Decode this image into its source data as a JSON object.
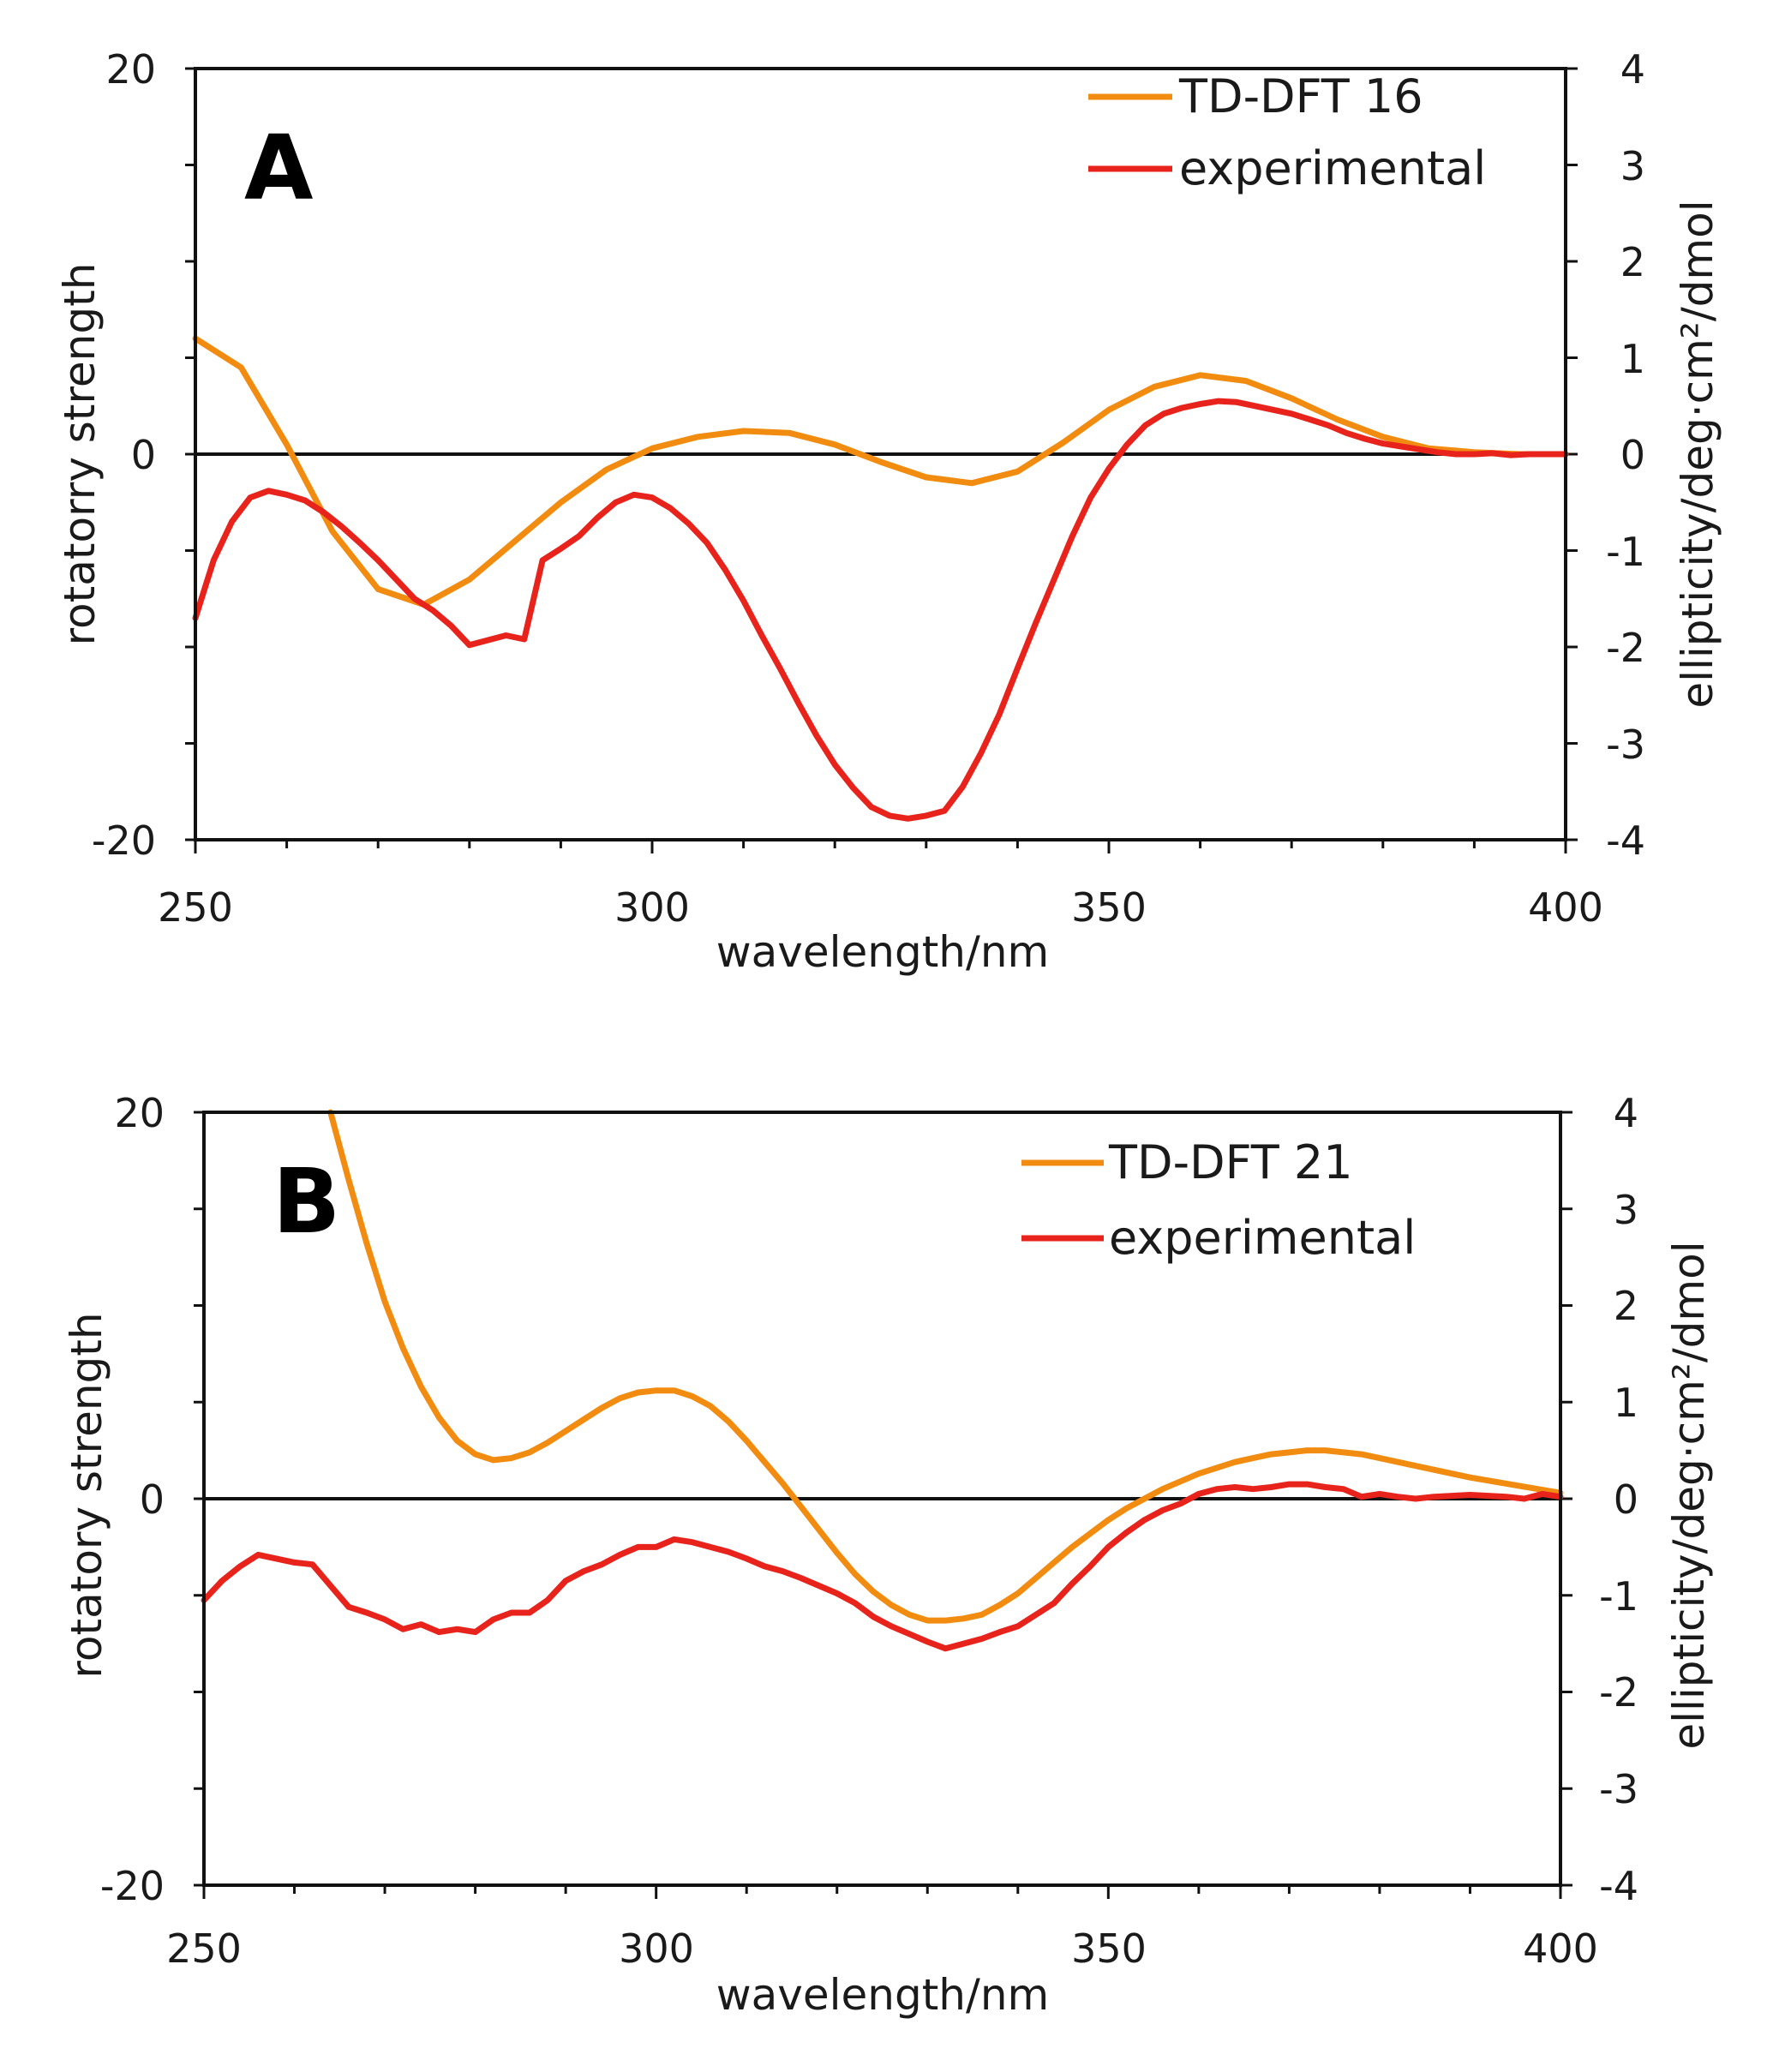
{
  "colors": {
    "theory": "#F28C10",
    "experimental": "#E8231C",
    "axis": "#111111"
  },
  "chart_data": [
    {
      "type": "line",
      "panel_label": "A",
      "xlabel": "wavelength/nm",
      "ylabel": "rotatorry strength",
      "y2label": "ellipticity/deg·cm²/dmol",
      "xlim": [
        250,
        400
      ],
      "ylim": [
        -20,
        20
      ],
      "y2lim": [
        -4,
        4
      ],
      "x_ticks": [
        "250",
        "300",
        "350",
        "400"
      ],
      "y_ticks": [
        "20",
        "0",
        "-20"
      ],
      "y2_ticks": [
        "4",
        "3",
        "2",
        "1",
        "0",
        "-1",
        "-2",
        "-3",
        "-4"
      ],
      "series": [
        {
          "name": "TD-DFT 16",
          "axis": "left",
          "color_key": "theory",
          "x": [
            250,
            255,
            260,
            265,
            270,
            275,
            280,
            285,
            290,
            295,
            300,
            305,
            310,
            315,
            320,
            325,
            330,
            335,
            340,
            345,
            350,
            355,
            360,
            365,
            370,
            375,
            380,
            385,
            390,
            395,
            400
          ],
          "y": [
            6,
            4.5,
            0.5,
            -4,
            -7,
            -7.8,
            -6.5,
            -4.5,
            -2.5,
            -0.8,
            0.3,
            0.9,
            1.2,
            1.1,
            0.5,
            -0.4,
            -1.2,
            -1.5,
            -0.9,
            0.6,
            2.3,
            3.5,
            4.1,
            3.8,
            2.9,
            1.8,
            0.9,
            0.3,
            0.1,
            0,
            0
          ]
        },
        {
          "name": "experimental",
          "axis": "right",
          "color_key": "experimental",
          "x": [
            250,
            252,
            254,
            256,
            258,
            260,
            262,
            264,
            266,
            268,
            270,
            272,
            274,
            276,
            278,
            280,
            282,
            284,
            286,
            288,
            290,
            292,
            294,
            296,
            298,
            300,
            302,
            304,
            306,
            308,
            310,
            312,
            314,
            316,
            318,
            320,
            322,
            324,
            326,
            328,
            330,
            332,
            334,
            336,
            338,
            340,
            342,
            344,
            346,
            348,
            350,
            352,
            354,
            356,
            358,
            360,
            362,
            364,
            366,
            368,
            370,
            372,
            374,
            376,
            378,
            380,
            382,
            384,
            386,
            388,
            390,
            392,
            394,
            396,
            398,
            400
          ],
          "y": [
            -1.7,
            -1.1,
            -0.7,
            -0.45,
            -0.38,
            -0.42,
            -0.48,
            -0.6,
            -0.75,
            -0.92,
            -1.1,
            -1.3,
            -1.5,
            -1.62,
            -1.78,
            -1.98,
            -1.93,
            -1.88,
            -1.92,
            -1.1,
            -0.98,
            -0.85,
            -0.66,
            -0.5,
            -0.42,
            -0.45,
            -0.56,
            -0.72,
            -0.92,
            -1.2,
            -1.52,
            -1.88,
            -2.22,
            -2.58,
            -2.92,
            -3.22,
            -3.46,
            -3.66,
            -3.75,
            -3.78,
            -3.75,
            -3.7,
            -3.45,
            -3.1,
            -2.7,
            -2.22,
            -1.75,
            -1.3,
            -0.85,
            -0.45,
            -0.15,
            0.1,
            0.3,
            0.42,
            0.48,
            0.52,
            0.55,
            0.54,
            0.5,
            0.46,
            0.42,
            0.36,
            0.3,
            0.22,
            0.16,
            0.11,
            0.08,
            0.05,
            0.02,
            0.0,
            0.0,
            0.01,
            -0.01,
            0.0,
            0.0,
            0.0
          ]
        }
      ]
    },
    {
      "type": "line",
      "panel_label": "B",
      "xlabel": "wavelength/nm",
      "ylabel": "rotatory strength",
      "y2label": "ellipticity/deg·cm²/dmol",
      "xlim": [
        250,
        400
      ],
      "ylim": [
        -20,
        20
      ],
      "y2lim": [
        -4,
        4
      ],
      "x_ticks": [
        "250",
        "300",
        "350",
        "400"
      ],
      "y_ticks": [
        "20",
        "0",
        "-20"
      ],
      "y2_ticks": [
        "4",
        "3",
        "2",
        "1",
        "0",
        "-1",
        "-2",
        "-3",
        "-4"
      ],
      "series": [
        {
          "name": "TD-DFT 21",
          "axis": "left",
          "color_key": "theory",
          "x": [
            264,
            266,
            268,
            270,
            272,
            274,
            276,
            278,
            280,
            282,
            284,
            286,
            288,
            290,
            292,
            294,
            296,
            298,
            300,
            302,
            304,
            306,
            308,
            310,
            312,
            314,
            316,
            318,
            320,
            322,
            324,
            326,
            328,
            330,
            332,
            334,
            336,
            338,
            340,
            342,
            344,
            346,
            348,
            350,
            352,
            354,
            356,
            358,
            360,
            362,
            364,
            366,
            368,
            370,
            372,
            374,
            376,
            378,
            380,
            385,
            390,
            395,
            400
          ],
          "y": [
            20,
            16.5,
            13.2,
            10.2,
            7.8,
            5.8,
            4.2,
            3.0,
            2.3,
            2.0,
            2.1,
            2.4,
            2.9,
            3.5,
            4.1,
            4.7,
            5.2,
            5.5,
            5.6,
            5.6,
            5.3,
            4.8,
            4.0,
            3.0,
            1.9,
            0.8,
            -0.4,
            -1.6,
            -2.8,
            -3.9,
            -4.8,
            -5.5,
            -6.0,
            -6.3,
            -6.3,
            -6.2,
            -6.0,
            -5.5,
            -4.9,
            -4.1,
            -3.3,
            -2.5,
            -1.8,
            -1.1,
            -0.5,
            0.0,
            0.5,
            0.9,
            1.3,
            1.6,
            1.9,
            2.1,
            2.3,
            2.4,
            2.5,
            2.5,
            2.4,
            2.3,
            2.1,
            1.6,
            1.1,
            0.7,
            0.3
          ]
        },
        {
          "name": "experimental",
          "axis": "right",
          "color_key": "experimental",
          "x": [
            250,
            252,
            254,
            256,
            258,
            260,
            262,
            264,
            266,
            268,
            270,
            272,
            274,
            276,
            278,
            280,
            282,
            284,
            286,
            288,
            290,
            292,
            294,
            296,
            298,
            300,
            302,
            304,
            306,
            308,
            310,
            312,
            314,
            316,
            318,
            320,
            322,
            324,
            326,
            328,
            330,
            332,
            334,
            336,
            338,
            340,
            342,
            344,
            346,
            348,
            350,
            352,
            354,
            356,
            358,
            360,
            362,
            364,
            366,
            368,
            370,
            372,
            374,
            376,
            378,
            380,
            382,
            384,
            386,
            388,
            390,
            392,
            394,
            396,
            398,
            400
          ],
          "y": [
            -1.05,
            -0.85,
            -0.7,
            -0.58,
            -0.62,
            -0.66,
            -0.68,
            -0.9,
            -1.12,
            -1.18,
            -1.25,
            -1.35,
            -1.3,
            -1.38,
            -1.35,
            -1.38,
            -1.25,
            -1.18,
            -1.18,
            -1.05,
            -0.85,
            -0.75,
            -0.68,
            -0.58,
            -0.5,
            -0.5,
            -0.42,
            -0.45,
            -0.5,
            -0.55,
            -0.62,
            -0.7,
            -0.75,
            -0.82,
            -0.9,
            -0.98,
            -1.08,
            -1.22,
            -1.32,
            -1.4,
            -1.48,
            -1.55,
            -1.5,
            -1.45,
            -1.38,
            -1.32,
            -1.2,
            -1.08,
            -0.88,
            -0.7,
            -0.5,
            -0.35,
            -0.22,
            -0.12,
            -0.05,
            0.05,
            0.1,
            0.12,
            0.1,
            0.12,
            0.15,
            0.15,
            0.12,
            0.1,
            0.02,
            0.05,
            0.02,
            0.0,
            0.02,
            0.03,
            0.04,
            0.03,
            0.02,
            0.0,
            0.05,
            0.02
          ]
        }
      ]
    }
  ]
}
